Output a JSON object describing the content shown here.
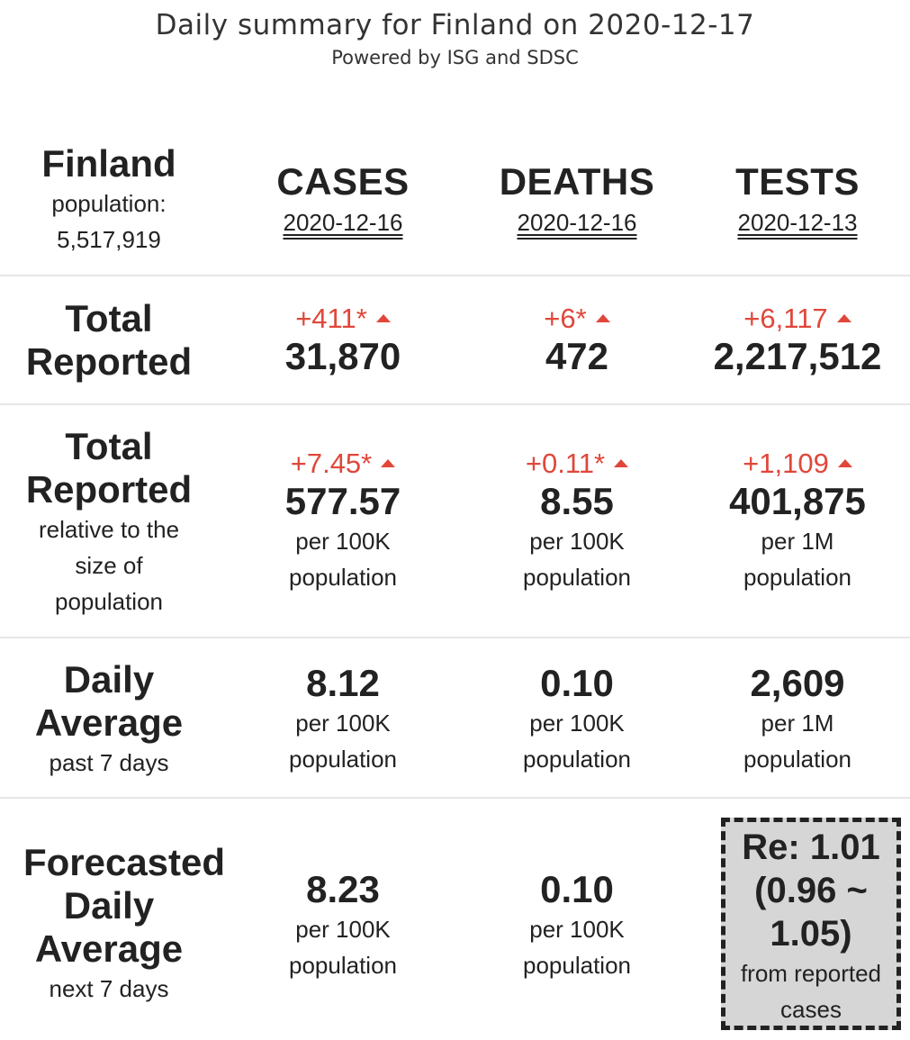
{
  "header": {
    "title": "Daily summary for Finland on 2020-12-17",
    "subtitle": "Powered by ISG and SDSC"
  },
  "region": {
    "name": "Finland",
    "population_label": "population:",
    "population_value": "5,517,919"
  },
  "columns": [
    {
      "name": "CASES",
      "date": "2020-12-16"
    },
    {
      "name": "DEATHS",
      "date": "2020-12-16"
    },
    {
      "name": "TESTS",
      "date": "2020-12-13"
    }
  ],
  "rows": {
    "total_reported": {
      "label_line1": "Total",
      "label_line2": "Reported",
      "cases": {
        "delta": "+411*",
        "value": "31,870"
      },
      "deaths": {
        "delta": "+6*",
        "value": "472"
      },
      "tests": {
        "delta": "+6,117",
        "value": "2,217,512"
      }
    },
    "relative": {
      "label_line1": "Total",
      "label_line2": "Reported",
      "sub1": "relative to the",
      "sub2": "size of",
      "sub3": "population",
      "cases": {
        "delta": "+7.45*",
        "value": "577.57",
        "unit1": "per 100K",
        "unit2": "population"
      },
      "deaths": {
        "delta": "+0.11*",
        "value": "8.55",
        "unit1": "per 100K",
        "unit2": "population"
      },
      "tests": {
        "delta": "+1,109",
        "value": "401,875",
        "unit1": "per 1M",
        "unit2": "population"
      }
    },
    "daily_average": {
      "label_line1": "Daily",
      "label_line2": "Average",
      "sub": "past 7 days",
      "cases": {
        "value": "8.12",
        "unit1": "per 100K",
        "unit2": "population"
      },
      "deaths": {
        "value": "0.10",
        "unit1": "per 100K",
        "unit2": "population"
      },
      "tests": {
        "value": "2,609",
        "unit1": "per 1M",
        "unit2": "population"
      }
    },
    "forecast": {
      "label_line1": "Forecasted",
      "label_line2": "Daily",
      "label_line3": "Average",
      "sub": "next 7 days",
      "cases": {
        "value": "8.23",
        "unit1": "per 100K",
        "unit2": "population"
      },
      "deaths": {
        "value": "0.10",
        "unit1": "per 100K",
        "unit2": "population"
      },
      "re": {
        "line1": "Re: 1.01",
        "line2": "(0.96 ~",
        "line3": "1.05)",
        "note1": "from reported",
        "note2": "cases"
      }
    }
  },
  "colors": {
    "increase": "#e0473a",
    "text": "#222222",
    "re_box_bg": "#d6d6d6"
  },
  "icons": {
    "increase_indicator": "triangle-up-icon"
  }
}
